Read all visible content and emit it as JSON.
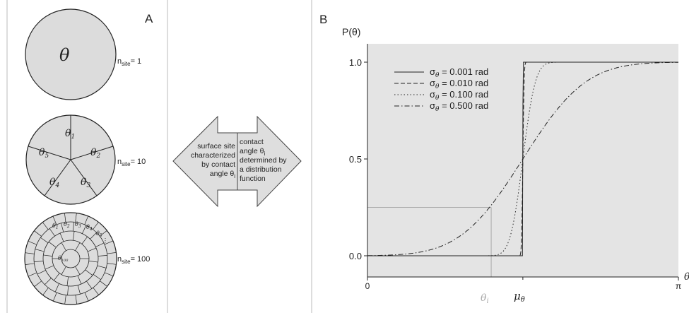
{
  "panel_a": {
    "label": "A",
    "disk_single": {
      "symbol": "θ",
      "n_site_label": "n",
      "n_site_sub": "site",
      "n_site_value": "= 1"
    },
    "disk_ten": {
      "sectors": [
        {
          "sym": "θ",
          "sub": "1"
        },
        {
          "sym": "θ",
          "sub": "2"
        },
        {
          "sym": "θ",
          "sub": "3"
        },
        {
          "sym": "θ",
          "sub": "4"
        },
        {
          "sym": "θ",
          "sub": "5"
        }
      ],
      "n_site_label": "n",
      "n_site_sub": "site",
      "n_site_value": "= 10"
    },
    "disk_hundred": {
      "cells": [
        {
          "sym": "θ",
          "sub": "1"
        },
        {
          "sym": "θ",
          "sub": "2"
        },
        {
          "sym": "θ",
          "sub": "3"
        },
        {
          "sym": "θ",
          "sub": "4"
        },
        {
          "sym": "θ",
          "sub": "5"
        },
        {
          "sym": "θ",
          "sub": "100"
        }
      ],
      "n_site_label": "n",
      "n_site_sub": "site",
      "n_site_value": "= 100"
    }
  },
  "arrow": {
    "left_lines": [
      "surface site",
      "characterized",
      "by contact",
      "angle θ"
    ],
    "left_last_sub": "i",
    "right_lines": [
      "contact",
      "angle θ",
      "determined by",
      "a distribution",
      "function"
    ],
    "right_theta_sub": "i"
  },
  "panel_b": {
    "label": "B",
    "y_axis_label": "P(θ)",
    "y_ticks": [
      "0.0",
      "0.5",
      "1.0"
    ],
    "x_ticks": [
      "0",
      "π"
    ],
    "x_axis_partial": "θ",
    "theta_i_label": "θ",
    "theta_i_sub": "i",
    "mu_label": "μ",
    "mu_sub": "θ",
    "background_color": "#e4e4e4"
  },
  "chart_data": {
    "type": "line",
    "ylabel": "P(θ)",
    "xlim": [
      0,
      3.1416
    ],
    "ylim": [
      0,
      1
    ],
    "mu": 1.57,
    "theta_i": 1.25,
    "p_theta_i": 0.25,
    "legend_placement": "top-left",
    "series": [
      {
        "name": "σθ = 0.001 rad",
        "sigma": 0.001,
        "dash": "solid"
      },
      {
        "name": "σθ = 0.010 rad",
        "sigma": 0.01,
        "dash": "dashed"
      },
      {
        "name": "σθ = 0.100 rad",
        "sigma": 0.1,
        "dash": "dotted"
      },
      {
        "name": "σθ = 0.500 rad",
        "sigma": 0.5,
        "dash": "dashdot"
      }
    ],
    "legend": [
      {
        "sym": "σ",
        "sub": "θ",
        "value": " = 0.001 rad"
      },
      {
        "sym": "σ",
        "sub": "θ",
        "value": " = 0.010 rad"
      },
      {
        "sym": "σ",
        "sub": "θ",
        "value": " = 0.100 rad"
      },
      {
        "sym": "σ",
        "sub": "θ",
        "value": " = 0.500 rad"
      }
    ]
  }
}
